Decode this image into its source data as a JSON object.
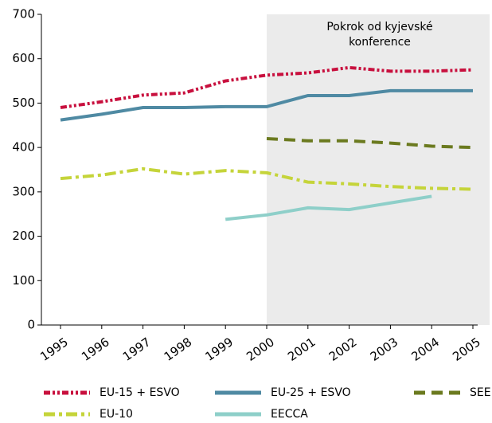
{
  "chart_data": {
    "type": "line",
    "categories": [
      "1995",
      "1996",
      "1997",
      "1998",
      "1999",
      "2000",
      "2001",
      "2002",
      "2003",
      "2004",
      "2005"
    ],
    "series": [
      {
        "name": "EU-15 + ESVO",
        "color": "#c8103e",
        "dash": "dash-dot-dot",
        "values": [
          490,
          503,
          518,
          523,
          550,
          563,
          568,
          580,
          572,
          572,
          575
        ]
      },
      {
        "name": "EU-25 + ESVO",
        "color": "#4f8aa3",
        "dash": "solid",
        "values": [
          462,
          475,
          490,
          490,
          492,
          492,
          517,
          517,
          528,
          528,
          528
        ]
      },
      {
        "name": "SEE",
        "color": "#6b7a1f",
        "dash": "dashed",
        "values": [
          null,
          null,
          null,
          null,
          null,
          420,
          415,
          415,
          410,
          403,
          400
        ]
      },
      {
        "name": "EU-10",
        "color": "#c5d43a",
        "dash": "dash-dot",
        "values": [
          330,
          338,
          352,
          340,
          348,
          343,
          322,
          318,
          312,
          308,
          306
        ]
      },
      {
        "name": "EECCA",
        "color": "#8ecfc9",
        "dash": "solid",
        "values": [
          null,
          null,
          null,
          null,
          238,
          248,
          264,
          260,
          275,
          290,
          null
        ]
      }
    ],
    "ylim": [
      0,
      700
    ],
    "yticks": [
      0,
      100,
      200,
      300,
      400,
      500,
      600,
      700
    ],
    "highlight_start": "2000",
    "annotation": [
      "Pokrok od kyjevské",
      "konference"
    ]
  }
}
